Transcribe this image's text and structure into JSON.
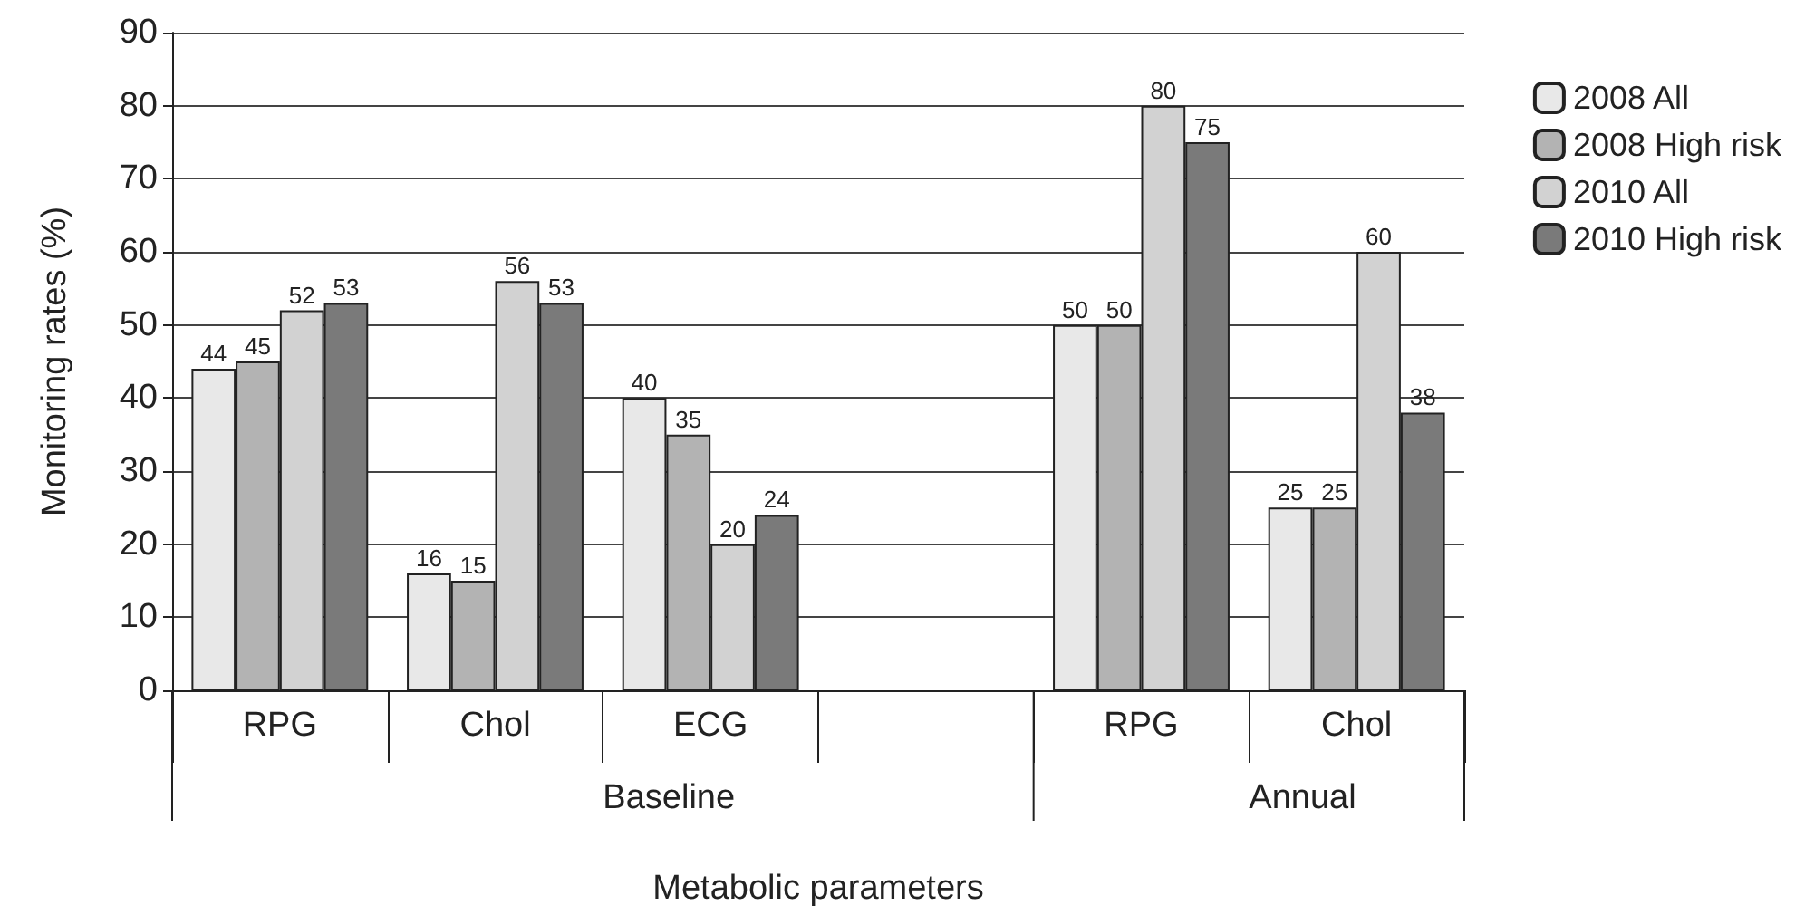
{
  "chart_data": {
    "type": "bar",
    "xlabel": "Metabolic parameters",
    "ylabel": "Monitoring rates (%)",
    "categories": [
      "RPG",
      "Chol",
      "ECG",
      null,
      "RPG",
      "Chol"
    ],
    "annotations": [
      "Baseline",
      "Annual"
    ],
    "series": [
      {
        "name": "2008 All",
        "color": "#e8e8e8",
        "values": [
          44,
          16,
          40,
          null,
          50,
          25
        ]
      },
      {
        "name": "2008 High risk",
        "color": "#b3b3b3",
        "values": [
          45,
          15,
          35,
          null,
          50,
          25
        ]
      },
      {
        "name": "2010 All",
        "color": "#d2d2d2",
        "values": [
          52,
          56,
          20,
          null,
          80,
          60
        ]
      },
      {
        "name": "2010 High risk",
        "color": "#7a7a7a",
        "values": [
          53,
          53,
          24,
          null,
          75,
          38
        ]
      }
    ],
    "ylim": [
      0,
      90
    ],
    "yticks": [
      0,
      10,
      20,
      30,
      40,
      50,
      60,
      70,
      80,
      90
    ],
    "grid": "y",
    "legend": "top right",
    "data_labels": true
  }
}
